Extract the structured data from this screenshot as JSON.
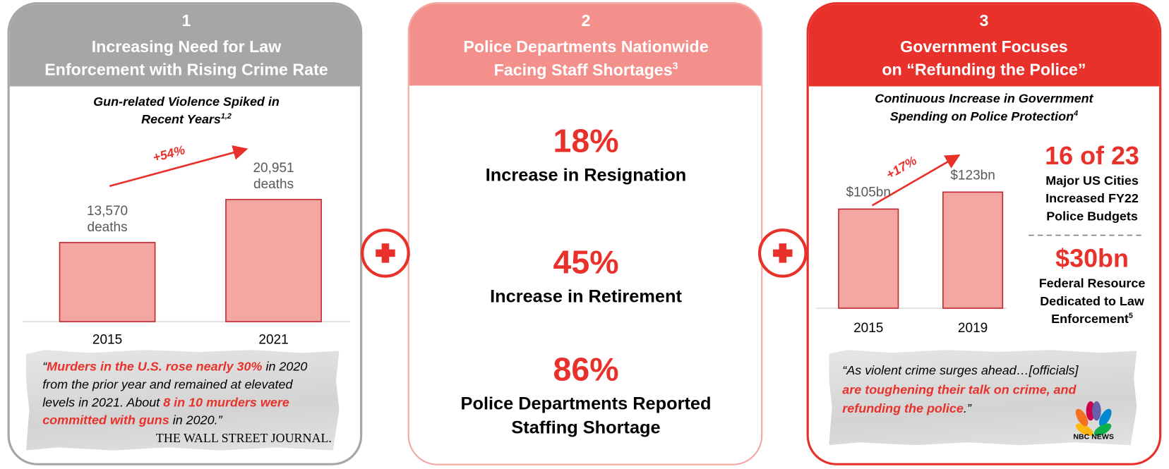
{
  "panels": [
    {
      "number": "1",
      "title_lines": [
        "Increasing Need for Law",
        "Enforcement with Rising Crime Rate"
      ],
      "subtitle_lines": [
        "Gun-related Violence Spiked in",
        "Recent Years"
      ],
      "subtitle_footnote": "1,2",
      "chart": {
        "type": "bar",
        "categories": [
          "2015",
          "2021"
        ],
        "values": [
          13570,
          20951
        ],
        "value_labels": [
          "13,570",
          "20,951"
        ],
        "unit": "deaths",
        "growth": "+54%",
        "color": "#f4a6a2"
      },
      "quote": {
        "lines": [
          [
            {
              "text": "“",
              "highlight": false
            },
            {
              "text": "Murders in the U.S. rose nearly 30%",
              "highlight": true
            },
            {
              "text": " in 2020",
              "highlight": false
            }
          ],
          [
            {
              "text": "from the prior year and remained at elevated",
              "highlight": false
            }
          ],
          [
            {
              "text": "levels in 2021. About ",
              "highlight": false
            },
            {
              "text": "8 in 10 murders were",
              "highlight": true
            }
          ],
          [
            {
              "text": "committed with guns",
              "highlight": true
            },
            {
              "text": " in 2020.”",
              "highlight": false
            }
          ]
        ],
        "source": "THE WALL STREET JOURNAL."
      }
    },
    {
      "number": "2",
      "title_lines": [
        "Police Departments Nationwide",
        "Facing Staff Shortages"
      ],
      "title_footnote": "3",
      "stats": [
        {
          "value": "18%",
          "label_lines": [
            "Increase in Resignation"
          ]
        },
        {
          "value": "45%",
          "label_lines": [
            "Increase in Retirement"
          ]
        },
        {
          "value": "86%",
          "label_lines": [
            "Police Departments Reported",
            "Staffing Shortage"
          ]
        }
      ]
    },
    {
      "number": "3",
      "title_lines": [
        "Government Focuses",
        "on “Refunding the Police”"
      ],
      "subtitle_lines": [
        "Continuous Increase in Government",
        "Spending on Police Protection"
      ],
      "subtitle_footnote": "4",
      "chart": {
        "type": "bar",
        "categories": [
          "2015",
          "2019"
        ],
        "values": [
          105,
          123
        ],
        "value_labels": [
          "$105bn",
          "$123bn"
        ],
        "growth": "+17%",
        "color": "#f4a6a2"
      },
      "highlights": [
        {
          "value": "16 of 23",
          "label_lines": [
            "Major US Cities",
            "Increased FY22",
            "Police Budgets"
          ]
        },
        {
          "value": "$30bn",
          "label_lines": [
            "Federal Resource",
            "Dedicated to Law",
            "Enforcement"
          ],
          "footnote": "5"
        }
      ],
      "quote": {
        "lines": [
          [
            {
              "text": "“As violent crime surges ahead…[officials]",
              "highlight": false
            }
          ],
          [
            {
              "text": "are toughening their talk on crime, and",
              "highlight": true
            }
          ],
          [
            {
              "text": "refunding the police",
              "highlight": true
            },
            {
              "text": ".”",
              "highlight": false
            }
          ]
        ],
        "source": "NBC NEWS"
      }
    }
  ]
}
